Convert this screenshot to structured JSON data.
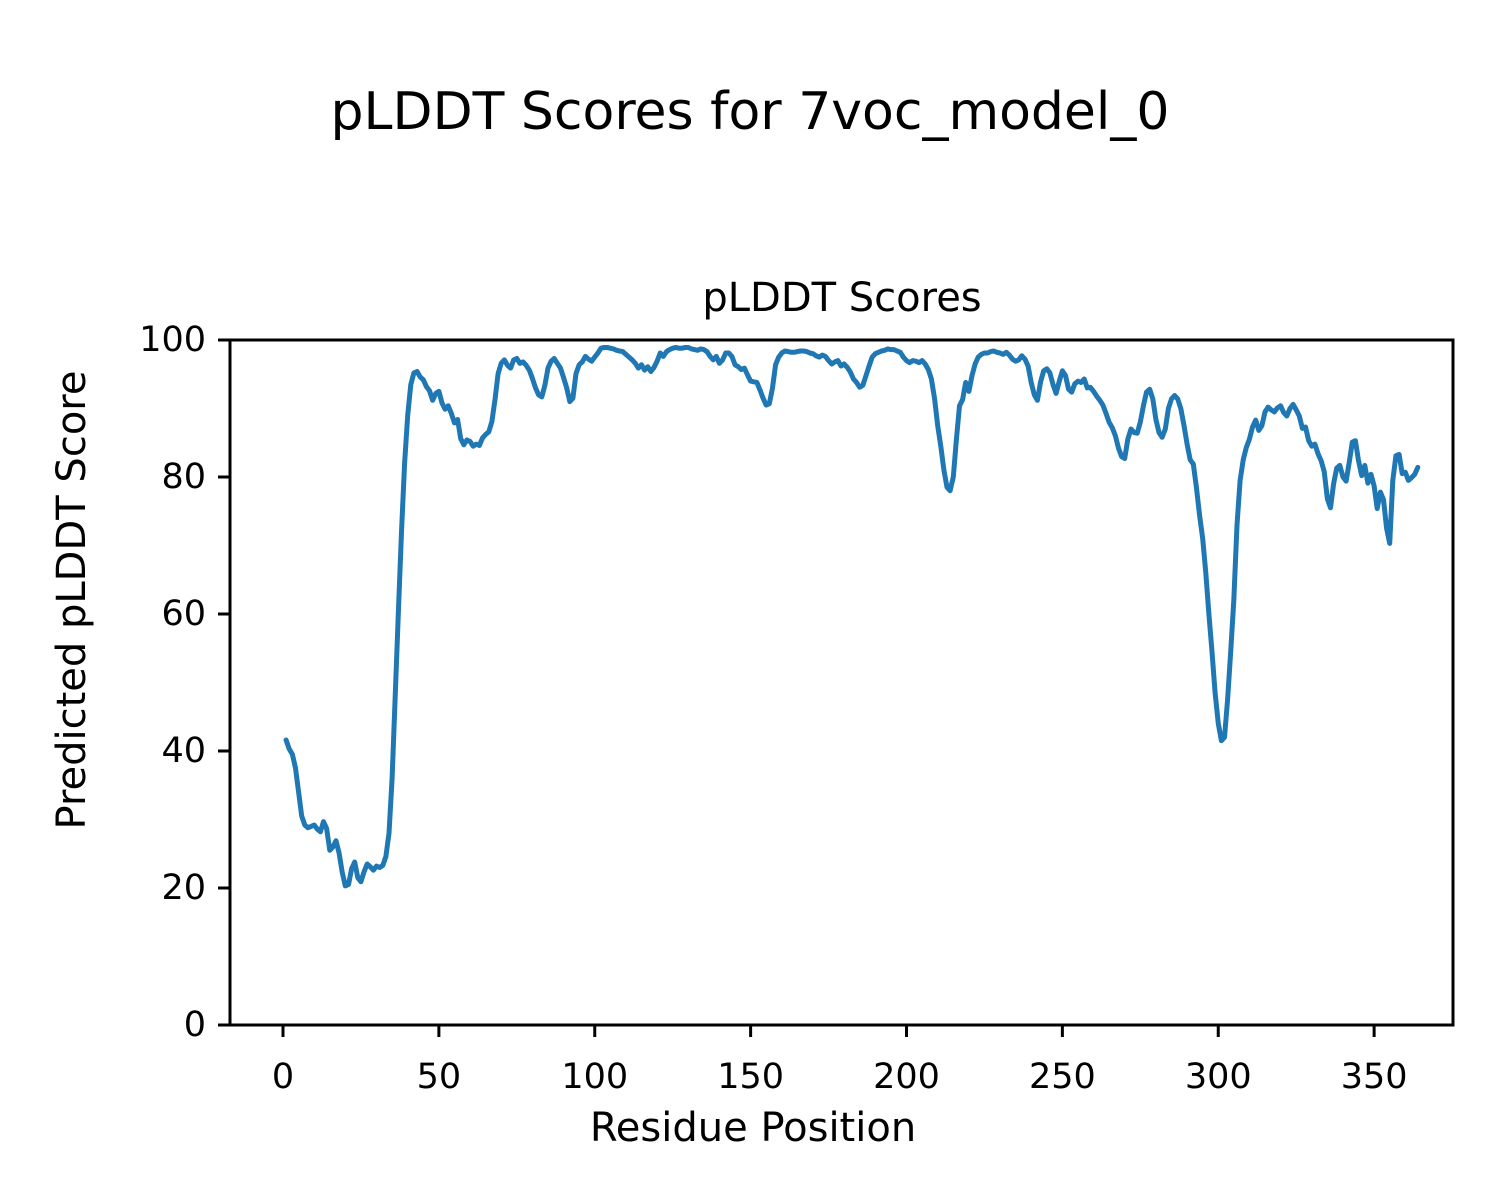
{
  "figure": {
    "suptitle": "pLDDT Scores for 7voc_model_0",
    "axes_title": "pLDDT Scores",
    "xlabel": "Residue Position",
    "ylabel": "Predicted pLDDT Score"
  },
  "chart_data": {
    "type": "line",
    "title": "pLDDT Scores",
    "suptitle": "pLDDT Scores for 7voc_model_0",
    "xlabel": "Residue Position",
    "ylabel": "Predicted pLDDT Score",
    "xticks": [
      0,
      50,
      100,
      150,
      200,
      250,
      300,
      350
    ],
    "yticks": [
      0,
      20,
      40,
      60,
      80,
      100
    ],
    "xlim": [
      -17,
      375.3
    ],
    "ylim": [
      0,
      100
    ],
    "grid": false,
    "legend": null,
    "line_color": "#1f77b4",
    "series": [
      {
        "name": "pLDDT",
        "x_start": 1,
        "x_step": 1,
        "y": [
          41.6,
          40.3,
          39.5,
          37.5,
          34,
          30.5,
          29.2,
          28.8,
          29,
          29.2,
          28.6,
          28.2,
          29.7,
          28.7,
          25.5,
          26,
          26.9,
          25.1,
          22.3,
          20.3,
          20.5,
          22.8,
          23.8,
          21.5,
          20.9,
          22.4,
          23.5,
          23.1,
          22.6,
          23.2,
          23,
          23.3,
          24.6,
          28,
          36,
          48,
          60,
          72,
          82,
          89,
          93.5,
          95.2,
          95.4,
          94.6,
          94.2,
          93.2,
          92.6,
          91.2,
          92.2,
          92.5,
          90.8,
          89.9,
          90.4,
          89.3,
          87.9,
          88.4,
          85.6,
          84.7,
          85.4,
          85.2,
          84.5,
          84.8,
          84.6,
          85.7,
          86.2,
          86.6,
          88.1,
          91.3,
          95.1,
          96.6,
          97.1,
          96.3,
          95.9,
          97.1,
          97.3,
          96.6,
          96.8,
          96.3,
          95.6,
          94.4,
          93,
          92,
          91.7,
          93.4,
          95.9,
          96.9,
          97.3,
          96.6,
          95.9,
          94.5,
          93,
          91,
          91.5,
          95.1,
          96.4,
          96.8,
          97.6,
          97.2,
          96.9,
          97.5,
          98.1,
          98.8,
          98.9,
          98.9,
          98.8,
          98.7,
          98.5,
          98.4,
          98.3,
          97.9,
          97.5,
          97.1,
          96.6,
          95.9,
          96.4,
          95.6,
          96.1,
          95.4,
          96,
          96.9,
          98.1,
          97.6,
          98.3,
          98.6,
          98.8,
          98.9,
          98.8,
          98.8,
          98.9,
          98.9,
          98.7,
          98.6,
          98.5,
          98.7,
          98.6,
          98.3,
          97.6,
          97.1,
          97.6,
          96.6,
          97.1,
          98.1,
          98.1,
          97.6,
          96.4,
          96.1,
          95.7,
          95.9,
          94.9,
          94,
          93.9,
          93.8,
          92.7,
          91.5,
          90.5,
          90.7,
          92.9,
          96.4,
          97.5,
          98.1,
          98.4,
          98.3,
          98.2,
          98.2,
          98.3,
          98.4,
          98.4,
          98.3,
          98.1,
          98,
          97.7,
          97.5,
          97.8,
          97.6,
          97,
          96.5,
          96.8,
          97,
          96.2,
          96.5,
          96,
          95.3,
          94.3,
          93.8,
          93.1,
          93.4,
          94.8,
          96.2,
          97.5,
          98,
          98.2,
          98.4,
          98.5,
          98.7,
          98.6,
          98.6,
          98.4,
          98.2,
          97.5,
          97,
          96.7,
          97,
          96.9,
          96.7,
          97,
          96.5,
          95.7,
          94.3,
          91.4,
          87.5,
          84.5,
          81,
          78.5,
          78,
          80,
          85.5,
          90.4,
          91.3,
          93.8,
          92.5,
          94.8,
          96.5,
          97.5,
          97.9,
          98.1,
          98.1,
          98.3,
          98.4,
          98.2,
          98.1,
          97.9,
          98.2,
          97.8,
          97.2,
          96.9,
          97.1,
          97.7,
          97.2,
          96.2,
          93.8,
          92,
          91.2,
          93.9,
          95.5,
          95.8,
          95.2,
          93.5,
          92.2,
          94,
          95.5,
          94.8,
          92.8,
          92.4,
          93.6,
          94,
          93.8,
          94.3,
          93,
          93.1,
          92.5,
          91.8,
          91.2,
          90.5,
          89.3,
          88,
          87.2,
          86,
          84.2,
          83,
          82.7,
          85.5,
          87,
          86.5,
          86.4,
          88,
          90.4,
          92.4,
          92.8,
          91.4,
          88.4,
          86.5,
          85.8,
          87,
          90,
          91.4,
          91.9,
          91.4,
          90,
          87.5,
          84.8,
          82.5,
          81.9,
          78.5,
          74.5,
          71,
          66,
          60,
          54.5,
          48.5,
          44,
          41.5,
          42,
          47.5,
          54.5,
          62,
          73,
          79.5,
          82.5,
          84.3,
          85.5,
          87.3,
          88.3,
          86.8,
          87.5,
          89.5,
          90.2,
          89.8,
          89.5,
          90.1,
          90.4,
          89.4,
          88.9,
          90,
          90.6,
          89.8,
          88.9,
          87.1,
          87.3,
          85.3,
          84.5,
          84.8,
          83.4,
          82.4,
          80.8,
          76.8,
          75.5,
          79,
          81.3,
          81.7,
          80,
          79.4,
          82.1,
          85.1,
          85.3,
          82.4,
          80.2,
          81.7,
          79.1,
          80.4,
          78.7,
          75.4,
          77.8,
          76.7,
          72.5,
          70.3,
          79.5,
          83.1,
          83.3,
          80.5,
          80.7,
          79.5,
          79.9,
          80.4,
          81.4
        ]
      }
    ]
  }
}
